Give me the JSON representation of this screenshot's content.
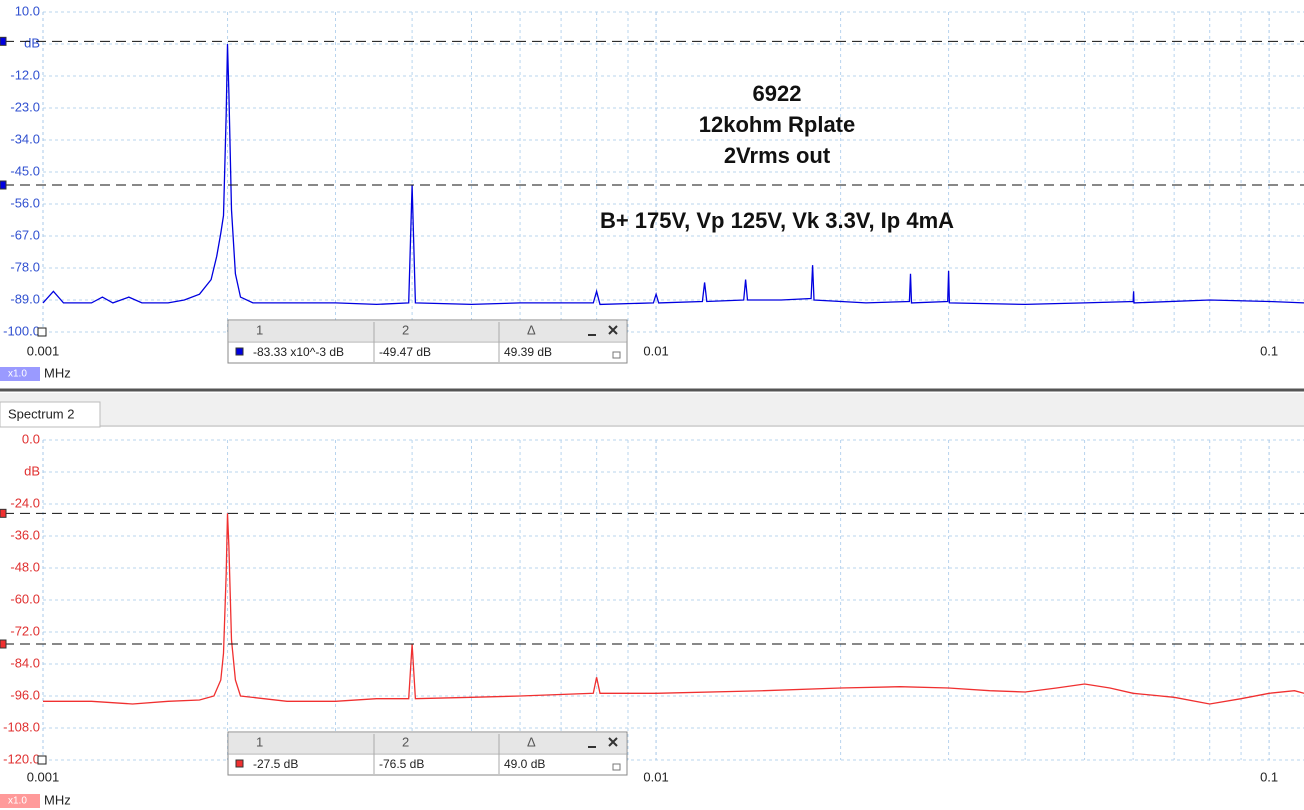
{
  "chart_data": [
    {
      "type": "line",
      "xscale": "log",
      "xlim": [
        0.001,
        0.114
      ],
      "xticks": [
        0.001,
        0.01,
        0.1
      ],
      "x_minor_ticks": [
        0.002,
        0.003,
        0.004,
        0.005,
        0.006,
        0.007,
        0.008,
        0.009,
        0.02,
        0.03,
        0.04,
        0.05,
        0.06,
        0.07,
        0.08,
        0.09
      ],
      "ylim": [
        -100,
        10
      ],
      "yticks": [
        {
          "value": 10,
          "label": "10.0"
        },
        {
          "value": -1,
          "label": "dB"
        },
        {
          "value": -12,
          "label": "-12.0"
        },
        {
          "value": -23,
          "label": "-23.0"
        },
        {
          "value": -34,
          "label": "-34.0"
        },
        {
          "value": -45,
          "label": "-45.0"
        },
        {
          "value": -56,
          "label": "-56.0"
        },
        {
          "value": -67,
          "label": "-67.0"
        },
        {
          "value": -78,
          "label": "-78.0"
        },
        {
          "value": -89,
          "label": "-89.0"
        },
        {
          "value": -100,
          "label": "-100.0"
        }
      ],
      "xlabel": "MHz",
      "x_zoom": "x1.0",
      "grid": true,
      "axis_color": "#3050d0",
      "annotations": [
        "6922",
        "12kohm Rplate",
        "2Vrms out",
        "B+ 175V, Vp 125V, Vk 3.3V, Ip 4mA"
      ],
      "x": [
        0.001,
        0.00104,
        0.00108,
        0.0012,
        0.00125,
        0.0013,
        0.00138,
        0.00145,
        0.0016,
        0.0017,
        0.0018,
        0.00188,
        0.00192,
        0.00195,
        0.00197,
        0.00199,
        0.002,
        0.00201,
        0.00203,
        0.00206,
        0.0021,
        0.0022,
        0.0025,
        0.003,
        0.0035,
        0.00395,
        0.004,
        0.00405,
        0.005,
        0.006,
        0.0079,
        0.008,
        0.0081,
        0.0099,
        0.01,
        0.0101,
        0.0119,
        0.012,
        0.0121,
        0.0139,
        0.014,
        0.0141,
        0.016,
        0.0179,
        0.018,
        0.0181,
        0.022,
        0.0259,
        0.026,
        0.0261,
        0.0299,
        0.03,
        0.0301,
        0.04,
        0.05,
        0.06,
        0.0601,
        0.0602,
        0.08,
        0.1,
        0.114
      ],
      "series": [
        {
          "color": "#0000e0",
          "values": [
            -90,
            -86,
            -90,
            -90,
            -88,
            -90,
            -88,
            -90,
            -90,
            -89,
            -87,
            -82,
            -74,
            -66,
            -60,
            -25,
            -1,
            -18,
            -58,
            -80,
            -88,
            -90,
            -90,
            -90,
            -90.5,
            -90,
            -49.5,
            -90,
            -90.5,
            -90,
            -90,
            -86,
            -90.5,
            -90,
            -87,
            -90,
            -89.5,
            -83,
            -89.5,
            -89,
            -82,
            -89,
            -89,
            -88.5,
            -77,
            -89,
            -90,
            -89.5,
            -80,
            -90,
            -89.5,
            -79,
            -90,
            -90.5,
            -90,
            -89.5,
            -86,
            -90,
            -89,
            -89.5,
            -90
          ]
        }
      ],
      "cursor_headers": [
        "1",
        "2",
        "Δ"
      ],
      "cursors": [
        {
          "value": -0.08333,
          "label": "-83.33 x10^-3 dB"
        },
        {
          "value": -49.47,
          "label": "-49.47 dB"
        }
      ],
      "cursor_delta": {
        "value": 49.39,
        "label": "49.39 dB"
      }
    },
    {
      "type": "line",
      "tab": "Spectrum 2",
      "xscale": "log",
      "xlim": [
        0.001,
        0.114
      ],
      "xticks": [
        0.001,
        0.01,
        0.1
      ],
      "x_minor_ticks": [
        0.002,
        0.003,
        0.004,
        0.005,
        0.006,
        0.007,
        0.008,
        0.009,
        0.02,
        0.03,
        0.04,
        0.05,
        0.06,
        0.07,
        0.08,
        0.09
      ],
      "ylim": [
        -120,
        0
      ],
      "yticks": [
        {
          "value": 0,
          "label": "0.0"
        },
        {
          "value": -12,
          "label": "dB"
        },
        {
          "value": -24,
          "label": "-24.0"
        },
        {
          "value": -36,
          "label": "-36.0"
        },
        {
          "value": -48,
          "label": "-48.0"
        },
        {
          "value": -60,
          "label": "-60.0"
        },
        {
          "value": -72,
          "label": "-72.0"
        },
        {
          "value": -84,
          "label": "-84.0"
        },
        {
          "value": -96,
          "label": "-96.0"
        },
        {
          "value": -108,
          "label": "-108.0"
        },
        {
          "value": -120,
          "label": "-120.0"
        }
      ],
      "xlabel": "MHz",
      "x_zoom": "x1.0",
      "grid": true,
      "axis_color": "#e03030",
      "x": [
        0.001,
        0.0012,
        0.0014,
        0.0016,
        0.0018,
        0.0019,
        0.00195,
        0.00197,
        0.00199,
        0.002,
        0.00201,
        0.00203,
        0.00206,
        0.0021,
        0.0025,
        0.003,
        0.0035,
        0.00395,
        0.004,
        0.00405,
        0.005,
        0.006,
        0.0079,
        0.008,
        0.0081,
        0.01,
        0.015,
        0.02,
        0.025,
        0.03,
        0.035,
        0.04,
        0.045,
        0.05,
        0.055,
        0.06,
        0.07,
        0.08,
        0.09,
        0.1,
        0.11,
        0.114
      ],
      "series": [
        {
          "color": "#f03030",
          "values": [
            -98,
            -98,
            -99,
            -98,
            -97.5,
            -96,
            -90,
            -80,
            -50,
            -27.5,
            -40,
            -75,
            -90,
            -96,
            -98,
            -98,
            -97,
            -97,
            -76.5,
            -97,
            -96.5,
            -96,
            -95,
            -89,
            -95,
            -95,
            -94,
            -93,
            -92.5,
            -93,
            -94,
            -94.5,
            -93,
            -91.5,
            -93,
            -95,
            -96.5,
            -99,
            -97,
            -95,
            -94,
            -95
          ]
        }
      ],
      "cursor_headers": [
        "1",
        "2",
        "Δ"
      ],
      "cursors": [
        {
          "value": -27.5,
          "label": "-27.5 dB"
        },
        {
          "value": -76.5,
          "label": "-76.5 dB"
        }
      ],
      "cursor_delta": {
        "value": 49.0,
        "label": "49.0 dB"
      }
    }
  ]
}
